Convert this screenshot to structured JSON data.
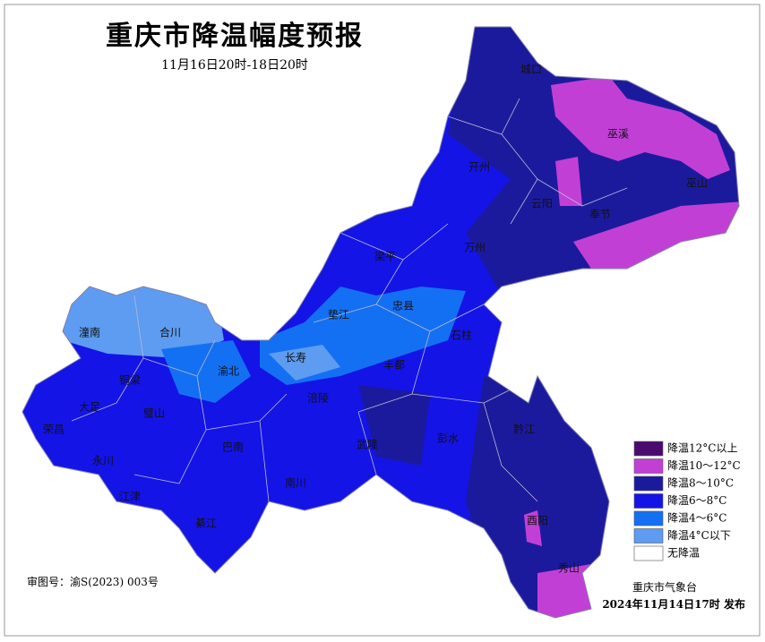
{
  "header": {
    "title": "重庆市降温幅度预报",
    "subtitle": "11月16日20时-18日20时"
  },
  "legend": {
    "items": [
      {
        "label": "降温12°C以上",
        "color": "#4b0a70"
      },
      {
        "label": "降温10～12°C",
        "color": "#c23fd6"
      },
      {
        "label": "降温8～10°C",
        "color": "#1c1a9c"
      },
      {
        "label": "降温6～8°C",
        "color": "#1414e6"
      },
      {
        "label": "降温4～6°C",
        "color": "#1470f2"
      },
      {
        "label": "降温4°C以下",
        "color": "#5d9cf0"
      },
      {
        "label": "无降温",
        "color": "#ffffff"
      }
    ]
  },
  "districts": [
    "城口",
    "巫溪",
    "开州",
    "云阳",
    "奉节",
    "巫山",
    "梁平",
    "万州",
    "潼南",
    "合川",
    "垫江",
    "忠县",
    "石柱",
    "渝北",
    "长寿",
    "丰都",
    "涪陵",
    "铜梁",
    "璧山",
    "大足",
    "荣昌",
    "永川",
    "江津",
    "巴南",
    "南川",
    "綦江",
    "武隆",
    "彭水",
    "黔江",
    "酉阳",
    "秀山"
  ],
  "footer": {
    "approval": "审图号：渝S(2023) 003号",
    "publisher": "重庆市气象台",
    "issued": "2024年11月14日17时 发布"
  }
}
